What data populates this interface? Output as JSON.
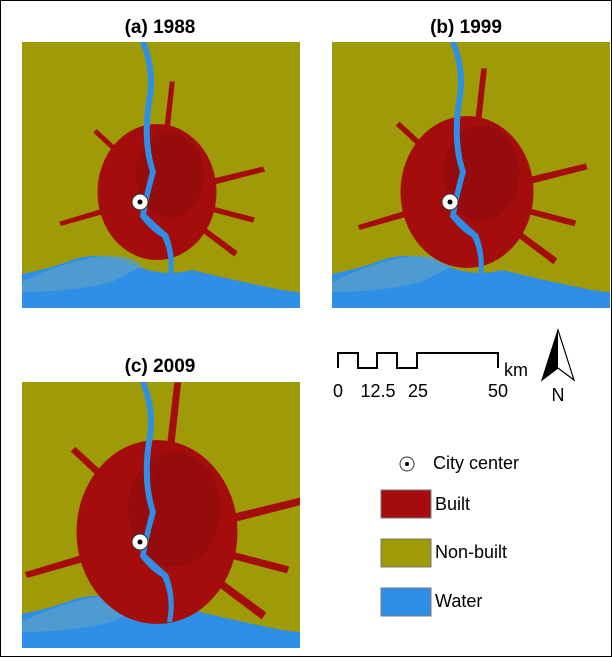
{
  "panels": [
    {
      "title": "(a) 1988"
    },
    {
      "title": "(b) 1999"
    },
    {
      "title": "(c) 2009"
    }
  ],
  "scale_bar": {
    "ticks": [
      0,
      12.5,
      25,
      50
    ],
    "unit": "km"
  },
  "north_arrow": "N",
  "legend": [
    {
      "label": "City center"
    },
    {
      "label": "Built"
    },
    {
      "label": "Non-built"
    },
    {
      "label": "Water"
    }
  ]
}
